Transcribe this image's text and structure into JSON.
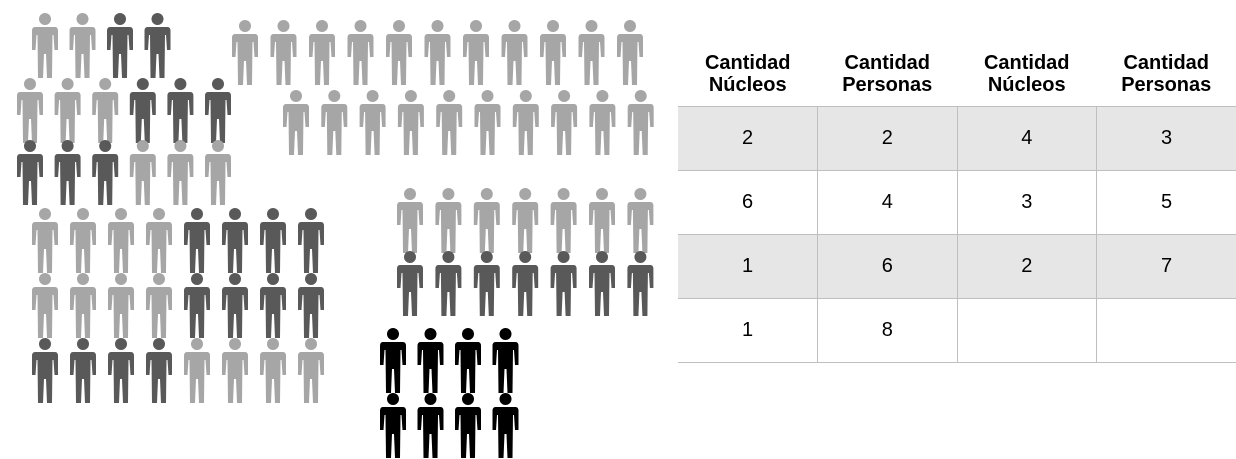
{
  "table": {
    "header": [
      "Cantidad Núcleos",
      "Cantidad Personas",
      "Cantidad Núcleos",
      "Cantidad Personas"
    ],
    "rows": [
      [
        "2",
        "2",
        "4",
        "3"
      ],
      [
        "6",
        "4",
        "3",
        "5"
      ],
      [
        "1",
        "6",
        "2",
        "7"
      ],
      [
        "1",
        "8"
      ]
    ]
  }
}
